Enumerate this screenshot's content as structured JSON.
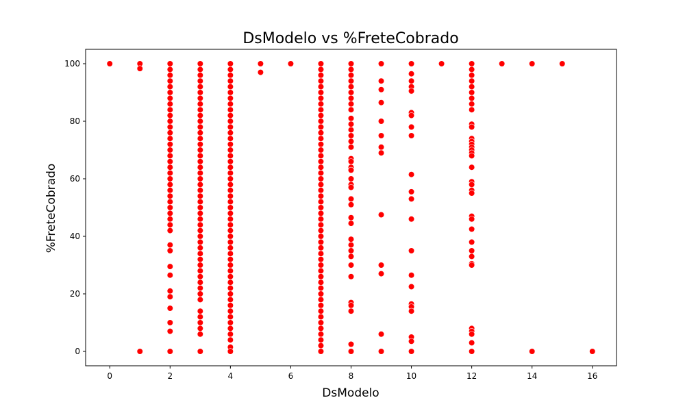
{
  "chart_data": {
    "type": "scatter",
    "title": "DsModelo vs %FreteCobrado",
    "xlabel": "DsModelo",
    "ylabel": "%FreteCobrado",
    "xlim": [
      -0.8,
      16.8
    ],
    "ylim": [
      -5,
      105
    ],
    "xticks": [
      0,
      2,
      4,
      6,
      8,
      10,
      12,
      14,
      16
    ],
    "yticks": [
      0,
      20,
      40,
      60,
      80,
      100
    ],
    "grid": false,
    "legend": "none",
    "marker_color": "#ff0000",
    "marker_edge_color": "#ffffff",
    "points": [
      [
        0,
        100
      ],
      [
        1,
        100
      ],
      [
        1,
        98.3
      ],
      [
        1,
        0
      ],
      [
        2,
        100
      ],
      [
        2,
        98
      ],
      [
        2,
        96
      ],
      [
        2,
        94
      ],
      [
        2,
        92
      ],
      [
        2,
        90
      ],
      [
        2,
        88
      ],
      [
        2,
        86
      ],
      [
        2,
        84
      ],
      [
        2,
        82
      ],
      [
        2,
        80
      ],
      [
        2,
        78
      ],
      [
        2,
        76
      ],
      [
        2,
        74
      ],
      [
        2,
        72
      ],
      [
        2,
        70
      ],
      [
        2,
        68
      ],
      [
        2,
        66
      ],
      [
        2,
        64
      ],
      [
        2,
        62
      ],
      [
        2,
        60
      ],
      [
        2,
        58
      ],
      [
        2,
        56
      ],
      [
        2,
        54
      ],
      [
        2,
        52
      ],
      [
        2,
        50
      ],
      [
        2,
        48
      ],
      [
        2,
        46
      ],
      [
        2,
        44
      ],
      [
        2,
        42
      ],
      [
        2,
        37
      ],
      [
        2,
        35
      ],
      [
        2,
        29.5
      ],
      [
        2,
        26.5
      ],
      [
        2,
        21
      ],
      [
        2,
        19
      ],
      [
        2,
        15
      ],
      [
        2,
        10
      ],
      [
        2,
        7
      ],
      [
        2,
        0
      ],
      [
        3,
        100
      ],
      [
        3,
        98
      ],
      [
        3,
        96
      ],
      [
        3,
        94
      ],
      [
        3,
        92
      ],
      [
        3,
        90
      ],
      [
        3,
        88
      ],
      [
        3,
        86
      ],
      [
        3,
        84
      ],
      [
        3,
        82
      ],
      [
        3,
        80
      ],
      [
        3,
        78
      ],
      [
        3,
        76
      ],
      [
        3,
        74
      ],
      [
        3,
        72
      ],
      [
        3,
        70
      ],
      [
        3,
        68
      ],
      [
        3,
        66
      ],
      [
        3,
        64
      ],
      [
        3,
        62
      ],
      [
        3,
        60
      ],
      [
        3,
        58
      ],
      [
        3,
        56
      ],
      [
        3,
        54
      ],
      [
        3,
        52
      ],
      [
        3,
        50
      ],
      [
        3,
        48
      ],
      [
        3,
        46
      ],
      [
        3,
        44
      ],
      [
        3,
        42
      ],
      [
        3,
        40
      ],
      [
        3,
        38
      ],
      [
        3,
        36
      ],
      [
        3,
        34
      ],
      [
        3,
        32
      ],
      [
        3,
        30
      ],
      [
        3,
        28
      ],
      [
        3,
        26
      ],
      [
        3,
        24
      ],
      [
        3,
        22
      ],
      [
        3,
        20
      ],
      [
        3,
        18
      ],
      [
        3,
        14
      ],
      [
        3,
        12
      ],
      [
        3,
        10
      ],
      [
        3,
        8
      ],
      [
        3,
        6
      ],
      [
        3,
        0
      ],
      [
        4,
        100
      ],
      [
        4,
        98
      ],
      [
        4,
        96
      ],
      [
        4,
        94
      ],
      [
        4,
        92
      ],
      [
        4,
        90
      ],
      [
        4,
        88
      ],
      [
        4,
        86
      ],
      [
        4,
        84
      ],
      [
        4,
        82
      ],
      [
        4,
        80
      ],
      [
        4,
        78
      ],
      [
        4,
        76
      ],
      [
        4,
        74
      ],
      [
        4,
        72
      ],
      [
        4,
        70
      ],
      [
        4,
        68
      ],
      [
        4,
        66
      ],
      [
        4,
        64
      ],
      [
        4,
        62
      ],
      [
        4,
        60
      ],
      [
        4,
        58
      ],
      [
        4,
        56
      ],
      [
        4,
        54
      ],
      [
        4,
        52
      ],
      [
        4,
        50
      ],
      [
        4,
        48
      ],
      [
        4,
        46
      ],
      [
        4,
        44
      ],
      [
        4,
        42
      ],
      [
        4,
        40
      ],
      [
        4,
        38
      ],
      [
        4,
        36
      ],
      [
        4,
        34
      ],
      [
        4,
        32
      ],
      [
        4,
        30
      ],
      [
        4,
        28
      ],
      [
        4,
        26
      ],
      [
        4,
        24
      ],
      [
        4,
        22
      ],
      [
        4,
        20
      ],
      [
        4,
        18
      ],
      [
        4,
        16
      ],
      [
        4,
        14
      ],
      [
        4,
        12
      ],
      [
        4,
        10
      ],
      [
        4,
        8
      ],
      [
        4,
        6
      ],
      [
        4,
        4
      ],
      [
        4,
        1.5
      ],
      [
        4,
        0
      ],
      [
        5,
        100
      ],
      [
        5,
        97
      ],
      [
        6,
        100
      ],
      [
        7,
        100
      ],
      [
        7,
        98
      ],
      [
        7,
        96
      ],
      [
        7,
        94
      ],
      [
        7,
        92
      ],
      [
        7,
        90
      ],
      [
        7,
        88
      ],
      [
        7,
        86
      ],
      [
        7,
        84
      ],
      [
        7,
        82
      ],
      [
        7,
        80
      ],
      [
        7,
        78
      ],
      [
        7,
        76
      ],
      [
        7,
        74
      ],
      [
        7,
        72
      ],
      [
        7,
        70
      ],
      [
        7,
        68
      ],
      [
        7,
        66
      ],
      [
        7,
        64
      ],
      [
        7,
        62
      ],
      [
        7,
        60
      ],
      [
        7,
        58
      ],
      [
        7,
        56
      ],
      [
        7,
        54
      ],
      [
        7,
        52
      ],
      [
        7,
        50
      ],
      [
        7,
        48
      ],
      [
        7,
        46
      ],
      [
        7,
        44
      ],
      [
        7,
        42
      ],
      [
        7,
        40
      ],
      [
        7,
        38
      ],
      [
        7,
        36
      ],
      [
        7,
        34
      ],
      [
        7,
        32
      ],
      [
        7,
        30
      ],
      [
        7,
        28
      ],
      [
        7,
        26
      ],
      [
        7,
        24
      ],
      [
        7,
        22
      ],
      [
        7,
        20
      ],
      [
        7,
        18
      ],
      [
        7,
        16
      ],
      [
        7,
        14
      ],
      [
        7,
        12
      ],
      [
        7,
        10
      ],
      [
        7,
        8
      ],
      [
        7,
        6
      ],
      [
        7,
        4
      ],
      [
        7,
        2
      ],
      [
        7,
        0
      ],
      [
        8,
        100
      ],
      [
        8,
        98
      ],
      [
        8,
        96
      ],
      [
        8,
        94
      ],
      [
        8,
        92
      ],
      [
        8,
        90
      ],
      [
        8,
        88
      ],
      [
        8,
        86
      ],
      [
        8,
        84
      ],
      [
        8,
        81
      ],
      [
        8,
        79
      ],
      [
        8,
        77
      ],
      [
        8,
        75
      ],
      [
        8,
        73
      ],
      [
        8,
        71
      ],
      [
        8,
        67
      ],
      [
        8,
        66
      ],
      [
        8,
        64
      ],
      [
        8,
        63
      ],
      [
        8,
        60
      ],
      [
        8,
        58
      ],
      [
        8,
        57
      ],
      [
        8,
        53
      ],
      [
        8,
        51
      ],
      [
        8,
        46.5
      ],
      [
        8,
        44.5
      ],
      [
        8,
        39
      ],
      [
        8,
        37
      ],
      [
        8,
        35
      ],
      [
        8,
        33
      ],
      [
        8,
        30
      ],
      [
        8,
        26
      ],
      [
        8,
        17
      ],
      [
        8,
        16
      ],
      [
        8,
        14
      ],
      [
        8,
        2.5
      ],
      [
        8,
        0
      ],
      [
        9,
        100
      ],
      [
        9,
        94
      ],
      [
        9,
        91
      ],
      [
        9,
        86.5
      ],
      [
        9,
        80
      ],
      [
        9,
        75
      ],
      [
        9,
        71
      ],
      [
        9,
        69
      ],
      [
        9,
        47.5
      ],
      [
        9,
        30
      ],
      [
        9,
        27
      ],
      [
        9,
        6
      ],
      [
        9,
        0
      ],
      [
        10,
        100
      ],
      [
        10,
        96.5
      ],
      [
        10,
        94
      ],
      [
        10,
        92
      ],
      [
        10,
        90.5
      ],
      [
        10,
        83
      ],
      [
        10,
        82
      ],
      [
        10,
        78
      ],
      [
        10,
        75
      ],
      [
        10,
        61.5
      ],
      [
        10,
        55.5
      ],
      [
        10,
        53
      ],
      [
        10,
        46
      ],
      [
        10,
        35
      ],
      [
        10,
        26.5
      ],
      [
        10,
        22.5
      ],
      [
        10,
        16.5
      ],
      [
        10,
        15.5
      ],
      [
        10,
        14
      ],
      [
        10,
        5
      ],
      [
        10,
        3.5
      ],
      [
        10,
        0
      ],
      [
        11,
        100
      ],
      [
        12,
        100
      ],
      [
        12,
        98
      ],
      [
        12,
        96
      ],
      [
        12,
        94
      ],
      [
        12,
        92
      ],
      [
        12,
        90
      ],
      [
        12,
        88
      ],
      [
        12,
        86
      ],
      [
        12,
        84
      ],
      [
        12,
        79
      ],
      [
        12,
        78
      ],
      [
        12,
        74
      ],
      [
        12,
        73
      ],
      [
        12,
        72
      ],
      [
        12,
        71
      ],
      [
        12,
        70
      ],
      [
        12,
        69
      ],
      [
        12,
        68
      ],
      [
        12,
        64
      ],
      [
        12,
        59
      ],
      [
        12,
        58
      ],
      [
        12,
        56
      ],
      [
        12,
        55
      ],
      [
        12,
        47
      ],
      [
        12,
        46
      ],
      [
        12,
        42.5
      ],
      [
        12,
        38
      ],
      [
        12,
        35
      ],
      [
        12,
        33
      ],
      [
        12,
        30.5
      ],
      [
        12,
        30
      ],
      [
        12,
        8
      ],
      [
        12,
        7
      ],
      [
        12,
        6
      ],
      [
        12,
        3
      ],
      [
        12,
        0
      ],
      [
        13,
        100
      ],
      [
        14,
        100
      ],
      [
        14,
        0
      ],
      [
        15,
        100
      ],
      [
        16,
        0
      ]
    ]
  }
}
